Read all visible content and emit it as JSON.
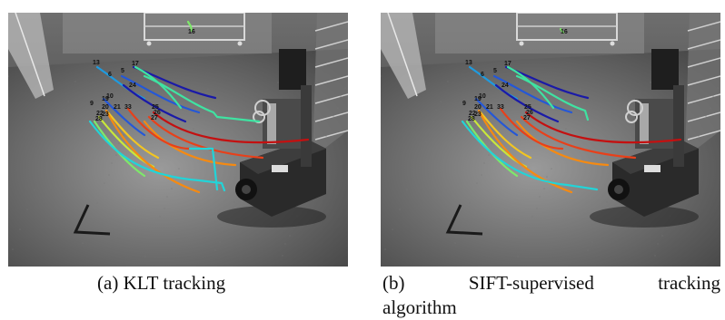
{
  "figure": {
    "panels": [
      {
        "id": "a",
        "caption_tag": "(a)",
        "caption_words": [
          "KLT",
          "tracking"
        ],
        "track_labels": [
          "13",
          "17",
          "6",
          "5",
          "10",
          "9",
          "19",
          "20",
          "21",
          "22",
          "23",
          "24",
          "28",
          "33",
          "25",
          "26",
          "27",
          "16"
        ]
      },
      {
        "id": "b",
        "caption_tag": "(b)",
        "caption_words": [
          "SIFT-supervised",
          "tracking"
        ],
        "caption_line2": "algorithm",
        "track_labels": [
          "13",
          "17",
          "6",
          "5",
          "10",
          "9",
          "19",
          "20",
          "21",
          "22",
          "23",
          "24",
          "28",
          "33",
          "25",
          "26",
          "27",
          "16"
        ]
      }
    ],
    "track_colors": [
      "#1a1aa8",
      "#2457d8",
      "#1e9be0",
      "#22d4d8",
      "#3fe3a2",
      "#7ee86a",
      "#c9e83a",
      "#f2c521",
      "#f58a12",
      "#e8401a",
      "#c41010"
    ]
  }
}
